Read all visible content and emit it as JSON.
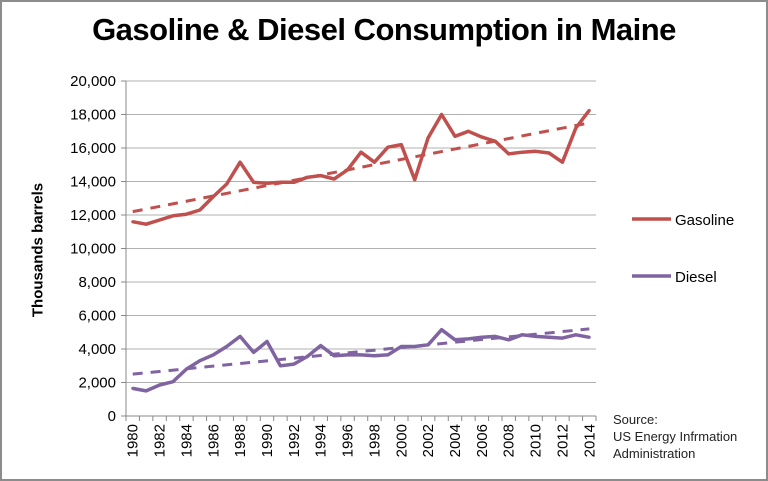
{
  "chart_data": {
    "type": "line",
    "title": "Gasoline & Diesel Consumption in Maine",
    "xlabel": "",
    "ylabel": "Thousands barrels",
    "ylim": [
      0,
      20000
    ],
    "yticks": [
      "0",
      "2,000",
      "4,000",
      "6,000",
      "8,000",
      "10,000",
      "12,000",
      "14,000",
      "16,000",
      "18,000",
      "20,000"
    ],
    "ytick_values": [
      0,
      2000,
      4000,
      6000,
      8000,
      10000,
      12000,
      14000,
      16000,
      18000,
      20000
    ],
    "x": [
      1980,
      1981,
      1982,
      1983,
      1984,
      1985,
      1986,
      1987,
      1988,
      1989,
      1990,
      1991,
      1992,
      1993,
      1994,
      1995,
      1996,
      1997,
      1998,
      1999,
      2000,
      2001,
      2002,
      2003,
      2004,
      2005,
      2006,
      2007,
      2008,
      2009,
      2010,
      2011,
      2012,
      2013,
      2014
    ],
    "xtick_labels": [
      "1980",
      "1982",
      "1984",
      "1986",
      "1988",
      "1990",
      "1992",
      "1994",
      "1996",
      "1998",
      "2000",
      "2002",
      "2004",
      "2006",
      "2008",
      "2010",
      "2012",
      "2014"
    ],
    "grid": true,
    "legend_position": "right",
    "series": [
      {
        "name": "Gasoline",
        "color": "#c0504d",
        "values": [
          11600,
          11450,
          11700,
          11950,
          12050,
          12300,
          13100,
          13850,
          15150,
          13950,
          13900,
          13950,
          13950,
          14250,
          14350,
          14150,
          14700,
          15750,
          15150,
          16050,
          16200,
          14100,
          16600,
          18000,
          16700,
          17000,
          16650,
          16400,
          15650,
          15750,
          15800,
          15700,
          15150,
          17200,
          18250
        ],
        "trendline": {
          "style": "dashed",
          "start": 12200,
          "end": 17500
        }
      },
      {
        "name": "Diesel",
        "color": "#8064a2",
        "values": [
          1650,
          1500,
          1850,
          2050,
          2800,
          3300,
          3650,
          4150,
          4750,
          3800,
          4450,
          3000,
          3100,
          3550,
          4200,
          3600,
          3650,
          3650,
          3600,
          3650,
          4150,
          4150,
          4250,
          5150,
          4550,
          4600,
          4700,
          4750,
          4550,
          4850,
          4750,
          4700,
          4650,
          4850,
          4700
        ],
        "trendline": {
          "style": "dashed",
          "start": 2500,
          "end": 5200
        }
      }
    ],
    "annotations": [
      "Source:",
      "US Energy Infrmation",
      "Administration"
    ]
  },
  "source": {
    "line1": "Source:",
    "line2": "US Energy Infrmation",
    "line3": "Administration"
  }
}
